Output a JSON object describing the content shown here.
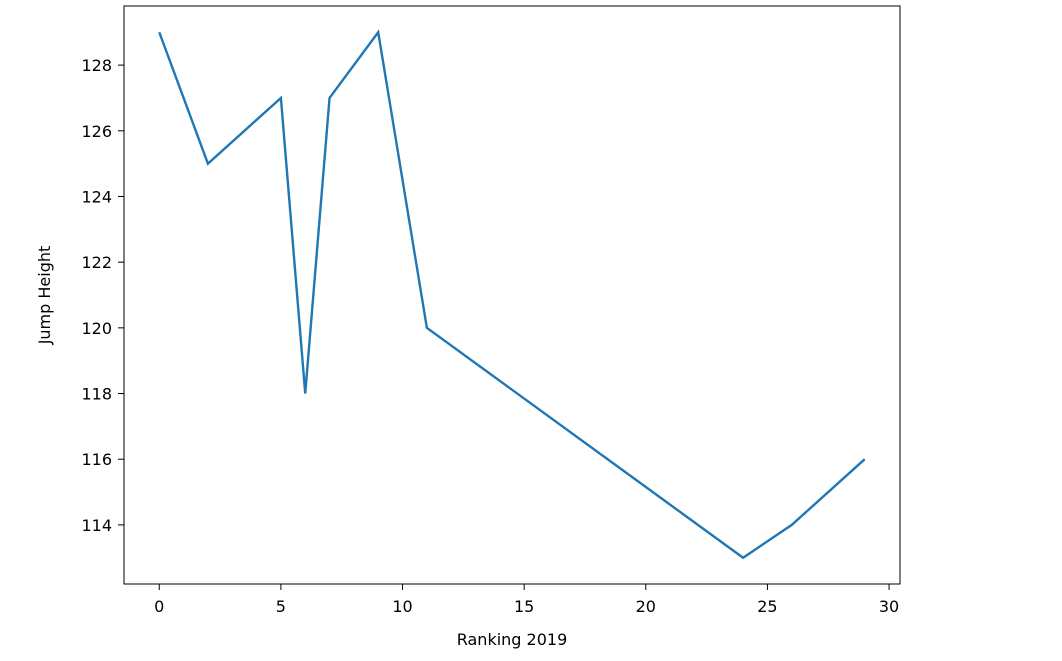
{
  "chart_data": {
    "type": "line",
    "title": "",
    "xlabel": "Ranking 2019",
    "ylabel": "Jump Height",
    "xlim": [
      -1.45,
      30.45
    ],
    "ylim": [
      112.2,
      129.8
    ],
    "grid": false,
    "x_ticks": [
      0,
      5,
      10,
      15,
      20,
      25,
      30
    ],
    "y_ticks": [
      114,
      116,
      118,
      120,
      122,
      124,
      126,
      128
    ],
    "series": [
      {
        "x": [
          0,
          2,
          5,
          6,
          7,
          9,
          11,
          24,
          26,
          29
        ],
        "y": [
          129,
          125,
          127,
          118,
          127,
          129,
          120,
          113,
          114,
          116
        ]
      }
    ],
    "colors": {
      "line": "#1f77b4",
      "axes": "#000000"
    }
  }
}
